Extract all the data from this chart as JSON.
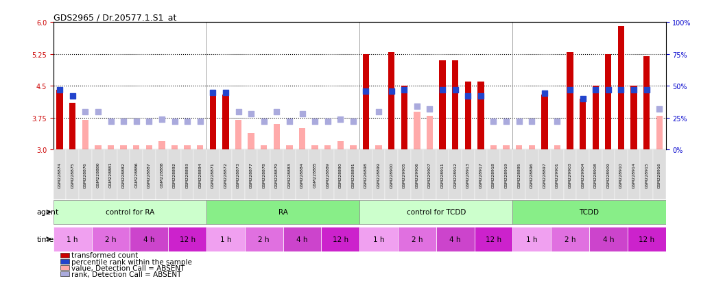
{
  "title": "GDS2965 / Dr.20577.1.S1_at",
  "samples": [
    "GSM228874",
    "GSM228875",
    "GSM228876",
    "GSM228880",
    "GSM228881",
    "GSM228882",
    "GSM228886",
    "GSM228887",
    "GSM228888",
    "GSM228892",
    "GSM228893",
    "GSM228894",
    "GSM228871",
    "GSM228872",
    "GSM228873",
    "GSM228877",
    "GSM228878",
    "GSM228879",
    "GSM228883",
    "GSM228884",
    "GSM228885",
    "GSM228889",
    "GSM228890",
    "GSM228891",
    "GSM226898",
    "GSM228899",
    "GSM228900",
    "GSM229905",
    "GSM229906",
    "GSM229907",
    "GSM228911",
    "GSM228912",
    "GSM228913",
    "GSM228917",
    "GSM228918",
    "GSM228919",
    "GSM228895",
    "GSM228896",
    "GSM228897",
    "GSM229901",
    "GSM229903",
    "GSM229904",
    "GSM228908",
    "GSM228909",
    "GSM228910",
    "GSM228914",
    "GSM228915",
    "GSM228916"
  ],
  "transformed_count": [
    4.4,
    4.1,
    3.7,
    3.1,
    3.1,
    3.1,
    3.1,
    3.1,
    3.2,
    3.1,
    3.1,
    3.1,
    4.3,
    4.3,
    3.7,
    3.4,
    3.1,
    3.6,
    3.1,
    3.5,
    3.1,
    3.1,
    3.2,
    3.1,
    5.25,
    3.1,
    5.3,
    4.5,
    3.9,
    3.8,
    5.1,
    5.1,
    4.6,
    4.6,
    3.1,
    3.1,
    3.1,
    3.1,
    4.3,
    3.1,
    5.3,
    4.2,
    4.5,
    5.25,
    5.9,
    4.5,
    5.2,
    3.8
  ],
  "transformed_absent": [
    false,
    false,
    true,
    true,
    true,
    true,
    true,
    true,
    true,
    true,
    true,
    true,
    false,
    false,
    true,
    true,
    true,
    true,
    true,
    true,
    true,
    true,
    true,
    true,
    false,
    true,
    false,
    false,
    true,
    true,
    false,
    false,
    false,
    false,
    true,
    true,
    true,
    true,
    false,
    true,
    false,
    false,
    false,
    false,
    false,
    false,
    false,
    true
  ],
  "percentile_rank": [
    47,
    42,
    30,
    30,
    22,
    22,
    22,
    22,
    24,
    22,
    22,
    22,
    45,
    45,
    30,
    28,
    22,
    30,
    22,
    28,
    22,
    22,
    24,
    22,
    46,
    30,
    46,
    47,
    34,
    32,
    47,
    47,
    42,
    42,
    22,
    22,
    22,
    22,
    44,
    22,
    47,
    40,
    47,
    47,
    47,
    47,
    47,
    32
  ],
  "rank_absent": [
    false,
    false,
    true,
    true,
    true,
    true,
    true,
    true,
    true,
    true,
    true,
    true,
    false,
    false,
    true,
    true,
    true,
    true,
    true,
    true,
    true,
    true,
    true,
    true,
    false,
    true,
    false,
    false,
    true,
    true,
    false,
    false,
    false,
    false,
    true,
    true,
    true,
    true,
    false,
    true,
    false,
    false,
    false,
    false,
    false,
    false,
    false,
    true
  ],
  "ylim_left": [
    3.0,
    6.0
  ],
  "ylim_right": [
    0,
    100
  ],
  "yticks_left": [
    3.0,
    3.75,
    4.5,
    5.25,
    6.0
  ],
  "yticks_right": [
    0,
    25,
    50,
    75,
    100
  ],
  "hlines": [
    3.75,
    4.5,
    5.25
  ],
  "bar_color_present": "#cc0000",
  "bar_color_absent": "#ffaaaa",
  "rank_color_present": "#2244cc",
  "rank_color_absent": "#aaaadd",
  "agent_groups": [
    {
      "label": "control for RA",
      "start": 0,
      "end": 11,
      "color": "#ccffcc"
    },
    {
      "label": "RA",
      "start": 12,
      "end": 23,
      "color": "#88ee88"
    },
    {
      "label": "control for TCDD",
      "start": 24,
      "end": 35,
      "color": "#ccffcc"
    },
    {
      "label": "TCDD",
      "start": 36,
      "end": 47,
      "color": "#88ee88"
    }
  ],
  "time_groups": [
    {
      "label": "1 h",
      "start": 0,
      "end": 2,
      "color": "#f0a0f0"
    },
    {
      "label": "2 h",
      "start": 3,
      "end": 5,
      "color": "#e070e0"
    },
    {
      "label": "4 h",
      "start": 6,
      "end": 8,
      "color": "#cc44cc"
    },
    {
      "label": "12 h",
      "start": 9,
      "end": 11,
      "color": "#cc22cc"
    },
    {
      "label": "1 h",
      "start": 12,
      "end": 14,
      "color": "#f0a0f0"
    },
    {
      "label": "2 h",
      "start": 15,
      "end": 17,
      "color": "#e070e0"
    },
    {
      "label": "4 h",
      "start": 18,
      "end": 20,
      "color": "#cc44cc"
    },
    {
      "label": "12 h",
      "start": 21,
      "end": 23,
      "color": "#cc22cc"
    },
    {
      "label": "1 h",
      "start": 24,
      "end": 26,
      "color": "#f0a0f0"
    },
    {
      "label": "2 h",
      "start": 27,
      "end": 29,
      "color": "#e070e0"
    },
    {
      "label": "4 h",
      "start": 30,
      "end": 32,
      "color": "#cc44cc"
    },
    {
      "label": "12 h",
      "start": 33,
      "end": 35,
      "color": "#cc22cc"
    },
    {
      "label": "1 h",
      "start": 36,
      "end": 38,
      "color": "#f0a0f0"
    },
    {
      "label": "2 h",
      "start": 39,
      "end": 41,
      "color": "#e070e0"
    },
    {
      "label": "4 h",
      "start": 42,
      "end": 44,
      "color": "#cc44cc"
    },
    {
      "label": "12 h",
      "start": 45,
      "end": 47,
      "color": "#cc22cc"
    }
  ],
  "legend_items": [
    {
      "color": "#cc0000",
      "label": "transformed count",
      "marker": "s"
    },
    {
      "color": "#2244cc",
      "label": "percentile rank within the sample",
      "marker": "s"
    },
    {
      "color": "#ffaaaa",
      "label": "value, Detection Call = ABSENT",
      "marker": "s"
    },
    {
      "color": "#aaaadd",
      "label": "rank, Detection Call = ABSENT",
      "marker": "s"
    }
  ],
  "ytick_color_left": "#cc0000",
  "ytick_color_right": "#0000cc"
}
